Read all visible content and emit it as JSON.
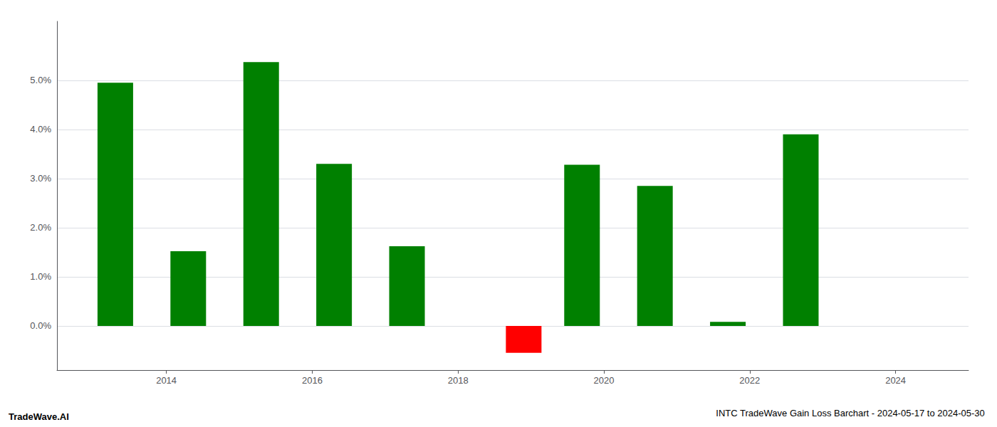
{
  "chart_data": {
    "type": "bar",
    "title": "INTC TradeWave Gain Loss Barchart - 2024-05-17 to 2024-05-30",
    "annotations": [
      "TradeWave.AI"
    ],
    "x": [
      2013.3,
      2014.3,
      2015.3,
      2016.3,
      2017.3,
      2018.9,
      2019.7,
      2020.7,
      2021.7,
      2022.7,
      2023.7
    ],
    "values": [
      0.0495,
      0.0152,
      0.0537,
      0.033,
      0.0162,
      -0.0055,
      0.0328,
      0.0285,
      0.0008,
      0.039,
      0.0
    ],
    "colors": [
      "#008000",
      "#008000",
      "#008000",
      "#008000",
      "#008000",
      "#ff0000",
      "#008000",
      "#008000",
      "#008000",
      "#008000",
      "#008000"
    ],
    "xlim": [
      2012.5,
      2025.0
    ],
    "ylim": [
      -0.009,
      0.062
    ],
    "xticks": [
      2014,
      2016,
      2018,
      2020,
      2022,
      2024
    ],
    "yticks": [
      {
        "value": 0.0,
        "label": "0.0%"
      },
      {
        "value": 0.01,
        "label": "1.0%"
      },
      {
        "value": 0.02,
        "label": "2.0%"
      },
      {
        "value": 0.03,
        "label": "3.0%"
      },
      {
        "value": 0.04,
        "label": "4.0%"
      },
      {
        "value": 0.05,
        "label": "5.0%"
      }
    ],
    "grid": true
  }
}
